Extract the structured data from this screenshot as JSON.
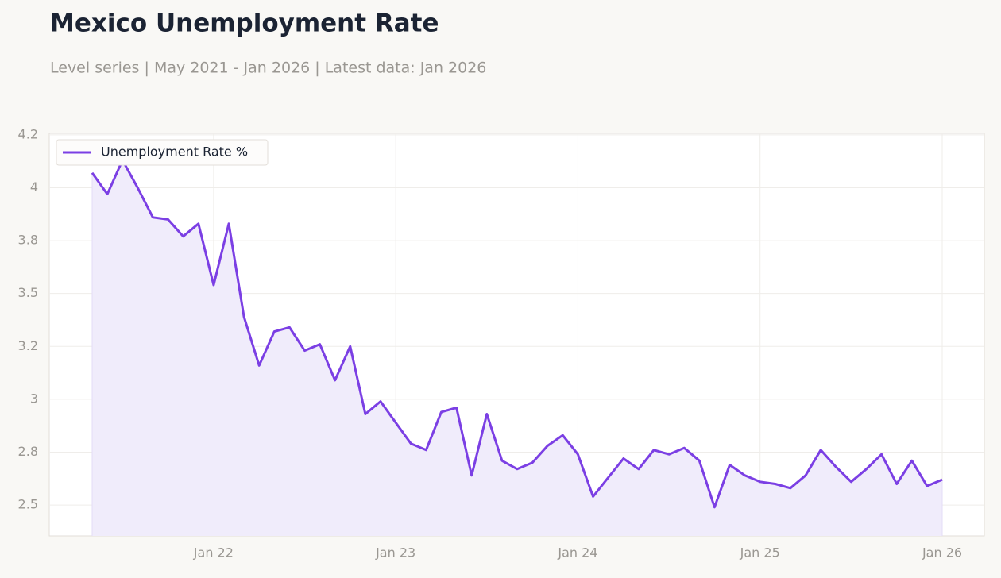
{
  "chart_data": {
    "type": "line",
    "title": "Mexico Unemployment Rate",
    "subtitle": "Level series | May 2021 - Jan 2026 | Latest data: Jan 2026",
    "x": [
      "2021-05",
      "2021-06",
      "2021-07",
      "2021-08",
      "2021-09",
      "2021-10",
      "2021-11",
      "2021-12",
      "2022-01",
      "2022-02",
      "2022-03",
      "2022-04",
      "2022-05",
      "2022-06",
      "2022-07",
      "2022-08",
      "2022-09",
      "2022-10",
      "2022-11",
      "2022-12",
      "2023-01",
      "2023-02",
      "2023-03",
      "2023-04",
      "2023-05",
      "2023-06",
      "2023-07",
      "2023-08",
      "2023-09",
      "2023-10",
      "2023-11",
      "2023-12",
      "2024-01",
      "2024-02",
      "2024-03",
      "2024-04",
      "2024-05",
      "2024-06",
      "2024-07",
      "2024-08",
      "2024-09",
      "2024-10",
      "2024-11",
      "2024-12",
      "2025-01",
      "2025-02",
      "2025-03",
      "2025-04",
      "2025-05",
      "2025-06",
      "2025-07",
      "2025-08",
      "2025-09",
      "2025-10",
      "2025-11",
      "2025-12",
      "2026-01"
    ],
    "series": [
      {
        "name": "Unemployment Rate %",
        "color": "#7b3fe4",
        "fill": "#f0ecfb",
        "values": [
          4.07,
          3.97,
          4.13,
          4.0,
          3.86,
          3.85,
          3.77,
          3.83,
          3.54,
          3.83,
          3.39,
          3.16,
          3.32,
          3.34,
          3.23,
          3.26,
          3.09,
          3.25,
          2.93,
          2.99,
          2.89,
          2.79,
          2.76,
          2.94,
          2.96,
          2.64,
          2.93,
          2.71,
          2.67,
          2.7,
          2.78,
          2.83,
          2.74,
          2.54,
          2.63,
          2.72,
          2.67,
          2.76,
          2.74,
          2.77,
          2.71,
          2.49,
          2.69,
          2.64,
          2.61,
          2.6,
          2.58,
          2.64,
          2.76,
          2.68,
          2.61,
          2.67,
          2.74,
          2.6,
          2.71,
          2.59,
          2.62
        ]
      }
    ],
    "ylim": [
      2.354,
      4.257
    ],
    "yticks": [
      {
        "value": 2.5,
        "label": "2.5"
      },
      {
        "value": 2.75,
        "label": "2.8"
      },
      3,
      {
        "value": 3.25,
        "label": "3.2"
      },
      {
        "value": 3.5,
        "label": "3.5"
      },
      {
        "value": 3.75,
        "label": "3.8"
      },
      4,
      {
        "value": 4.25,
        "label": "4.2"
      }
    ],
    "xticks": [
      {
        "value": "2022-01",
        "label": "Jan 22"
      },
      {
        "value": "2023-01",
        "label": "Jan 23"
      },
      {
        "value": "2024-01",
        "label": "Jan 24"
      },
      {
        "value": "2025-01",
        "label": "Jan 25"
      },
      {
        "value": "2026-01",
        "label": "Jan 26"
      }
    ],
    "grid": true,
    "legend": "upper-left"
  }
}
